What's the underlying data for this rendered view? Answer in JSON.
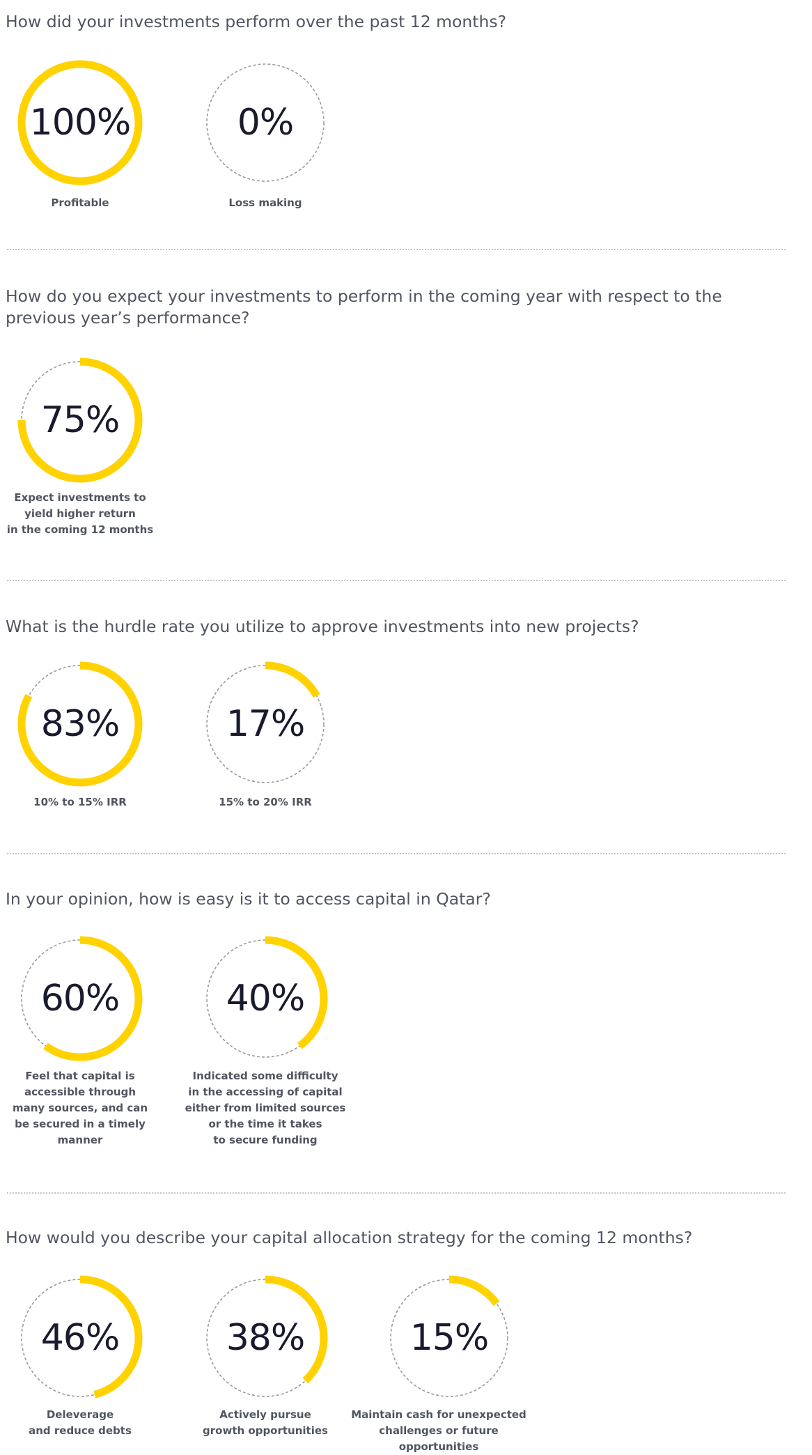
{
  "colors": {
    "accent": "#FFD200",
    "track": "#9a9a9a",
    "value_text": "#1a1a2e",
    "text": "#505560",
    "divider": "#c4c4c4"
  },
  "sections": [
    {
      "question": "How did your investments perform over the past 12 months?",
      "items": [
        {
          "value": "100%",
          "label": "Profitable"
        },
        {
          "value": "0%",
          "label": "Loss making"
        }
      ]
    },
    {
      "question": "How do you expect your investments to perform in the coming year with respect to the previous year’s performance?",
      "items": [
        {
          "value": "75%",
          "label": "Expect investments to\nyield higher return\nin the coming 12 months"
        }
      ]
    },
    {
      "question": "What is the hurdle rate you utilize to approve investments into new projects?",
      "items": [
        {
          "value": "83%",
          "label": "10% to 15% IRR"
        },
        {
          "value": "17%",
          "label": "15% to 20% IRR"
        }
      ]
    },
    {
      "question": "In your opinion, how is easy is it to access capital in Qatar?",
      "items": [
        {
          "value": "60%",
          "label": "Feel that capital is\naccessible through\nmany sources, and can\nbe secured in a timely\nmanner"
        },
        {
          "value": "40%",
          "label": "Indicated some difficulty\nin the accessing of capital\neither from limited sources\nor the time it takes\nto secure funding"
        }
      ]
    },
    {
      "question": "How would you describe your capital allocation strategy for the coming 12 months?",
      "items": [
        {
          "value": "46%",
          "label": "Deleverage\nand reduce debts"
        },
        {
          "value": "38%",
          "label": "Actively pursue\ngrowth opportunities"
        },
        {
          "value": "15%",
          "label": "Maintain cash for unexpected\nchallenges or future opportunities"
        }
      ]
    }
  ],
  "chart_data": [
    {
      "type": "pie",
      "title": "How did your investments perform over the past 12 months?",
      "categories": [
        "Profitable",
        "Loss making"
      ],
      "values": [
        100,
        0
      ],
      "unit": "%"
    },
    {
      "type": "pie",
      "title": "How do you expect your investments to perform in the coming year with respect to the previous year’s performance?",
      "categories": [
        "Expect investments to yield higher return in the coming 12 months"
      ],
      "values": [
        75
      ],
      "unit": "%"
    },
    {
      "type": "pie",
      "title": "What is the hurdle rate you utilize to approve investments into new projects?",
      "categories": [
        "10% to 15% IRR",
        "15% to 20% IRR"
      ],
      "values": [
        83,
        17
      ],
      "unit": "%"
    },
    {
      "type": "pie",
      "title": "In your opinion, how is easy is it to access capital in Qatar?",
      "categories": [
        "Feel that capital is accessible through many sources, and can be secured in a timely manner",
        "Indicated some difficulty in the accessing of capital either from limited sources or the time it takes to secure funding"
      ],
      "values": [
        60,
        40
      ],
      "unit": "%"
    },
    {
      "type": "pie",
      "title": "How would you describe your capital allocation strategy for the coming 12 months?",
      "categories": [
        "Deleverage and reduce debts",
        "Actively pursue growth opportunities",
        "Maintain cash for unexpected challenges or future opportunities"
      ],
      "values": [
        46,
        38,
        15
      ],
      "unit": "%"
    }
  ]
}
